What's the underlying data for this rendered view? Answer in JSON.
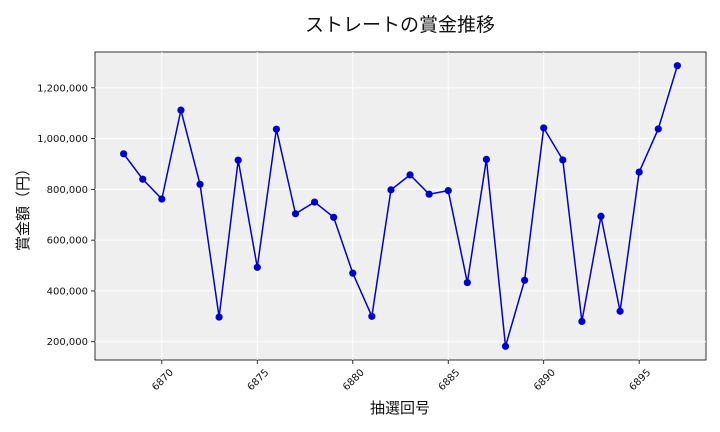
{
  "chart_data": {
    "type": "line",
    "title": "ストレートの賞金推移",
    "xlabel": "抽選回号",
    "ylabel": "賞金額（円）",
    "x": [
      6868,
      6869,
      6870,
      6871,
      6872,
      6873,
      6874,
      6875,
      6876,
      6877,
      6878,
      6879,
      6880,
      6881,
      6882,
      6883,
      6884,
      6885,
      6886,
      6887,
      6888,
      6889,
      6890,
      6891,
      6892,
      6893,
      6894,
      6895,
      6896,
      6897
    ],
    "series": [
      {
        "values": [
          940000,
          840000,
          762000,
          1112000,
          820000,
          297000,
          915000,
          493000,
          1037000,
          704000,
          750000,
          690000,
          470000,
          300000,
          798000,
          857000,
          781000,
          795000,
          433000,
          918000,
          182000,
          442000,
          1042000,
          916000,
          280000,
          694000,
          320000,
          868000,
          1038000,
          1287000
        ],
        "color": "#0000cc"
      }
    ],
    "xticks": [
      6870,
      6875,
      6880,
      6885,
      6890,
      6895
    ],
    "xtick_labels": [
      "6870",
      "6875",
      "6880",
      "6885",
      "6890",
      "6895"
    ],
    "yticks": [
      200000,
      400000,
      600000,
      800000,
      1000000,
      1200000
    ],
    "ytick_labels": [
      "200,000",
      "400,000",
      "600,000",
      "800,000",
      "1,000,000",
      "1,200,000"
    ],
    "xlim": [
      6866.5,
      6898.5
    ],
    "ylim": [
      128000,
      1341000
    ],
    "grid": true,
    "plot_background": "#efefef",
    "grid_color": "#ffffff"
  }
}
